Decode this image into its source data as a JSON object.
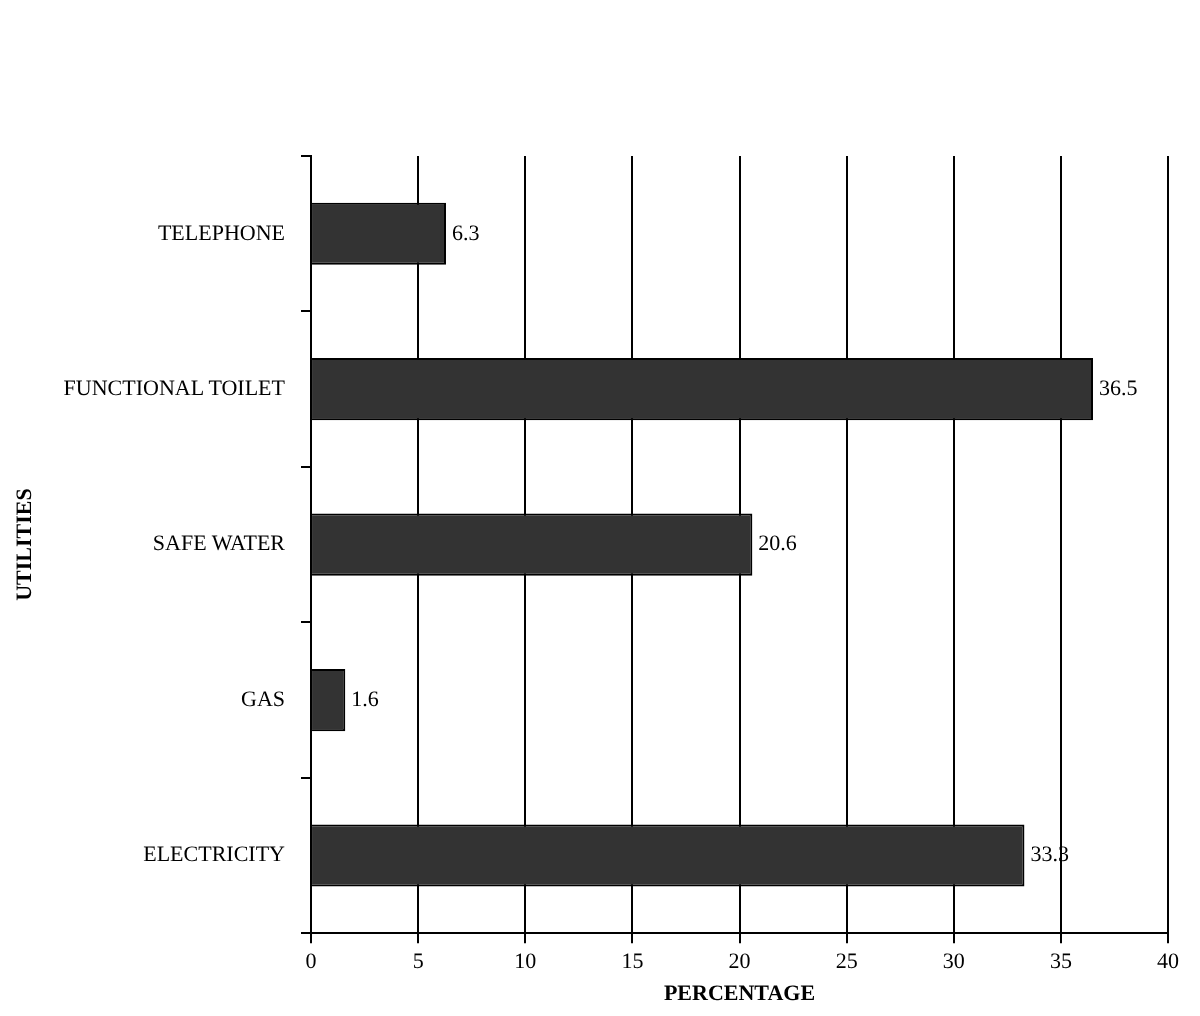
{
  "chart_data": {
    "type": "bar",
    "orientation": "horizontal",
    "xlabel": "PERCENTAGE",
    "ylabel": "UTILITIES",
    "categories": [
      "TELEPHONE",
      "FUNCTIONAL TOILET",
      "SAFE WATER",
      "GAS",
      "ELECTRICITY"
    ],
    "values": [
      6.3,
      36.5,
      20.6,
      1.6,
      33.3
    ],
    "color": "#333333",
    "xlim": [
      0,
      40
    ],
    "xticks": [
      0,
      5,
      10,
      15,
      20,
      25,
      30,
      35,
      40
    ],
    "grid": "x",
    "data_labels": true,
    "legend": false
  }
}
